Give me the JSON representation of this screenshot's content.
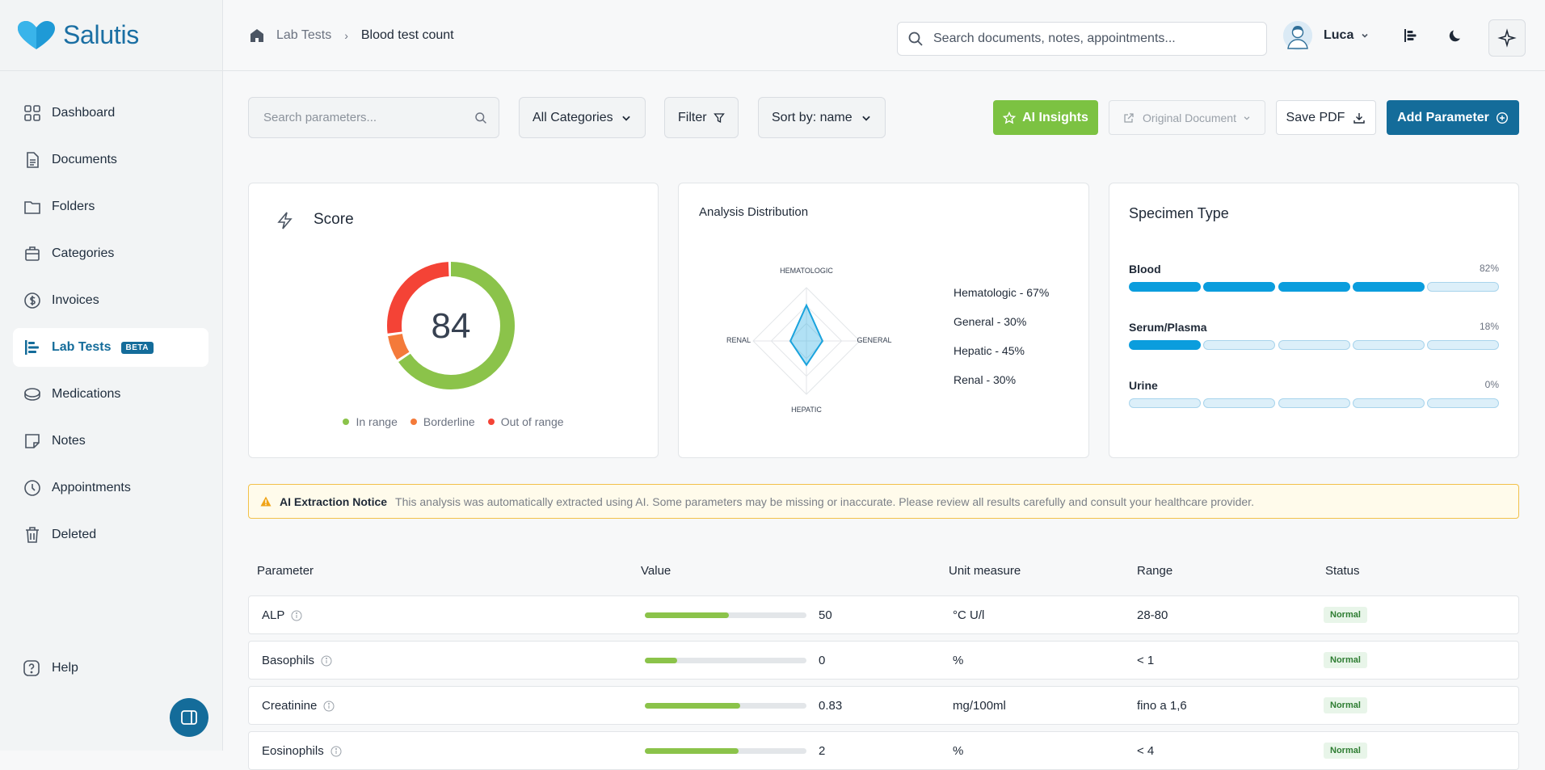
{
  "brand": {
    "name": "Salutis"
  },
  "sidebar": {
    "items": [
      {
        "label": "Dashboard",
        "icon": "grid-icon"
      },
      {
        "label": "Documents",
        "icon": "document-icon"
      },
      {
        "label": "Folders",
        "icon": "folder-icon"
      },
      {
        "label": "Categories",
        "icon": "box-icon"
      },
      {
        "label": "Invoices",
        "icon": "dollar-icon"
      },
      {
        "label": "Lab Tests",
        "icon": "bars-icon",
        "active": true,
        "badge": "BETA"
      },
      {
        "label": "Medications",
        "icon": "pill-icon"
      },
      {
        "label": "Notes",
        "icon": "note-icon"
      },
      {
        "label": "Appointments",
        "icon": "clock-icon"
      },
      {
        "label": "Deleted",
        "icon": "trash-icon"
      }
    ],
    "help": "Help"
  },
  "header": {
    "breadcrumb": {
      "parent": "Lab Tests",
      "current": "Blood test count"
    },
    "search_placeholder": "Search documents, notes, appointments...",
    "user": "Luca"
  },
  "toolbar": {
    "param_search_placeholder": "Search parameters...",
    "categories": "All Categories",
    "filter": "Filter",
    "sort": "Sort by: name",
    "ai_insights": "AI Insights",
    "original_document": "Original Document",
    "save_pdf": "Save PDF",
    "add_parameter": "Add Parameter"
  },
  "score_card": {
    "title": "Score",
    "value": "84",
    "segments": [
      {
        "name": "In range",
        "fraction": 0.66,
        "color": "#8bc34a"
      },
      {
        "name": "Borderline",
        "fraction": 0.07,
        "color": "#f47a3a"
      },
      {
        "name": "Out of range",
        "fraction": 0.27,
        "color": "#f44336"
      }
    ],
    "legend": [
      "In range",
      "Borderline",
      "Out of range"
    ]
  },
  "distribution_card": {
    "title": "Analysis Distribution",
    "axes": [
      "HEMATOLOGIC",
      "GENERAL",
      "HEPATIC",
      "RENAL"
    ],
    "values": [
      67,
      30,
      45,
      30
    ],
    "legend": [
      "Hematologic - 67%",
      "General - 30%",
      "Hepatic - 45%",
      "Renal - 30%"
    ]
  },
  "specimen_card": {
    "title": "Specimen Type",
    "rows": [
      {
        "label": "Blood",
        "pct": "82%",
        "filled": 4
      },
      {
        "label": "Serum/Plasma",
        "pct": "18%",
        "filled": 1
      },
      {
        "label": "Urine",
        "pct": "0%",
        "filled": 0
      }
    ]
  },
  "notice": {
    "title": "AI Extraction Notice",
    "text": "This analysis was automatically extracted using AI. Some parameters may be missing or inaccurate. Please review all results carefully and consult your healthcare provider."
  },
  "table": {
    "headers": {
      "parameter": "Parameter",
      "value": "Value",
      "unit": "Unit measure",
      "range": "Range",
      "status": "Status"
    },
    "rows": [
      {
        "name": "ALP",
        "value": "50",
        "fill": 0.52,
        "unit": "°C U/l",
        "range": "28-80",
        "status": "Normal"
      },
      {
        "name": "Basophils",
        "value": "0",
        "fill": 0.2,
        "unit": "%",
        "range": "< 1",
        "status": "Normal"
      },
      {
        "name": "Creatinine",
        "value": "0.83",
        "fill": 0.59,
        "unit": "mg/100ml",
        "range": "fino a 1,6",
        "status": "Normal"
      },
      {
        "name": "Eosinophils",
        "value": "2",
        "fill": 0.58,
        "unit": "%",
        "range": "< 4",
        "status": "Normal"
      }
    ]
  },
  "colors": {
    "primary": "#146c9a",
    "accent_green": "#7cc242",
    "warning": "#f2c14a"
  }
}
